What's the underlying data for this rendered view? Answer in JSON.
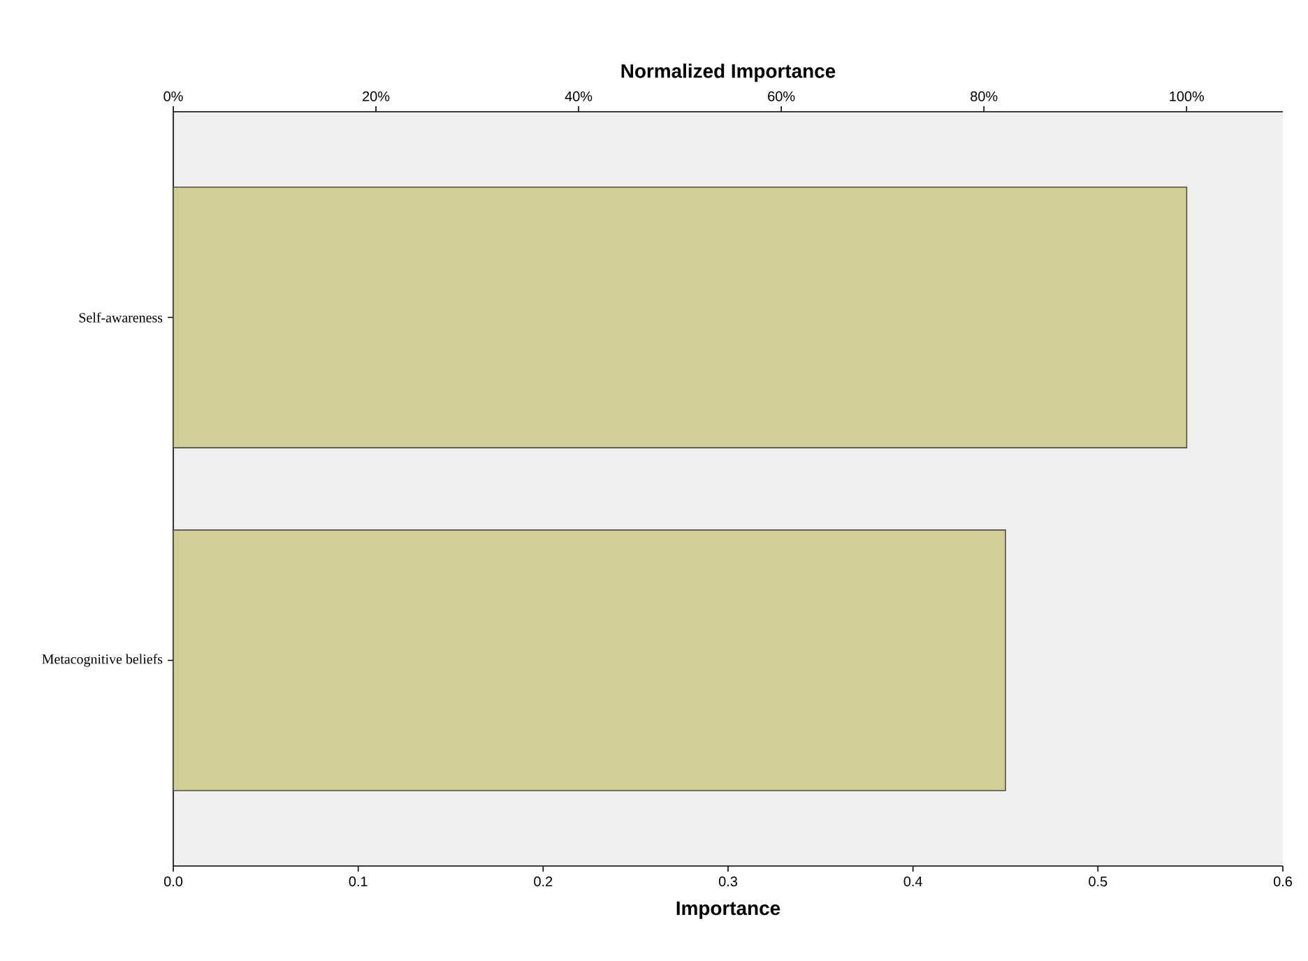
{
  "chart_data": {
    "type": "bar",
    "orientation": "horizontal",
    "xlabel": "Importance",
    "x2label": "Normalized Importance",
    "categories": [
      "Self-awareness",
      "Metacognitive beliefs"
    ],
    "values": [
      0.548,
      0.45
    ],
    "color": "#d3cd97",
    "xlim": [
      0,
      0.6
    ],
    "xticks": [
      {
        "value": 0,
        "label": "0.0"
      },
      0.1,
      0.2,
      0.3,
      0.4,
      0.5,
      0.6
    ],
    "x2lim": [
      0,
      109.5
    ],
    "x2ticks": [
      {
        "value": 0,
        "label": "0%"
      },
      {
        "value": 20,
        "label": "20%"
      },
      {
        "value": 40,
        "label": "40%"
      },
      {
        "value": 60,
        "label": "60%"
      },
      {
        "value": 80,
        "label": "80%"
      },
      {
        "value": 100,
        "label": "100%"
      }
    ],
    "grid": false
  }
}
